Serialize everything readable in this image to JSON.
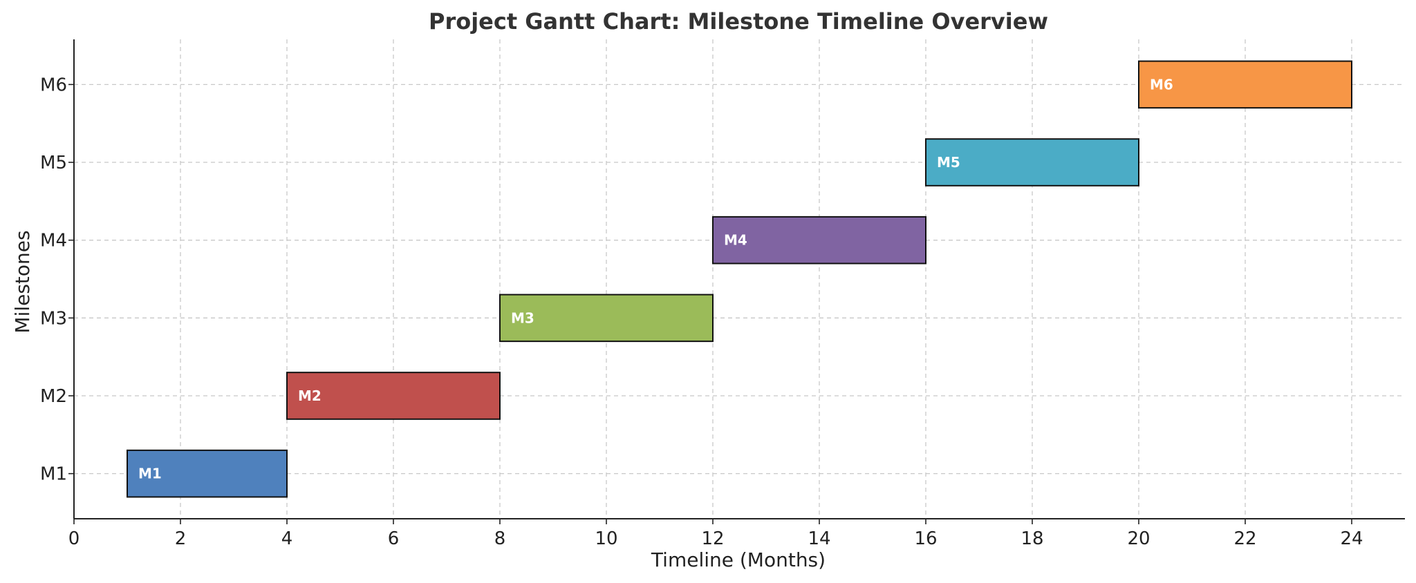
{
  "chart_data": {
    "type": "bar",
    "orientation": "horizontal-gantt",
    "title": "Project Gantt Chart: Milestone Timeline Overview",
    "xlabel": "Timeline (Months)",
    "ylabel": "Milestones",
    "xlim": [
      0,
      25
    ],
    "xticks": [
      "0",
      "2",
      "4",
      "6",
      "8",
      "10",
      "12",
      "14",
      "16",
      "18",
      "20",
      "22",
      "24"
    ],
    "categories": [
      "M1",
      "M2",
      "M3",
      "M4",
      "M5",
      "M6"
    ],
    "tasks": [
      {
        "name": "M1",
        "start": 1,
        "end": 4,
        "label": "M1",
        "color": "#4f81bd"
      },
      {
        "name": "M2",
        "start": 4,
        "end": 8,
        "label": "M2",
        "color": "#c0504d"
      },
      {
        "name": "M3",
        "start": 8,
        "end": 12,
        "label": "M3",
        "color": "#9bbb59"
      },
      {
        "name": "M4",
        "start": 12,
        "end": 16,
        "label": "M4",
        "color": "#8064a2"
      },
      {
        "name": "M5",
        "start": 16,
        "end": 20,
        "label": "M5",
        "color": "#4bacc6"
      },
      {
        "name": "M6",
        "start": 20,
        "end": 24,
        "label": "M6",
        "color": "#f79646"
      }
    ],
    "grid": true,
    "legend": "none"
  }
}
